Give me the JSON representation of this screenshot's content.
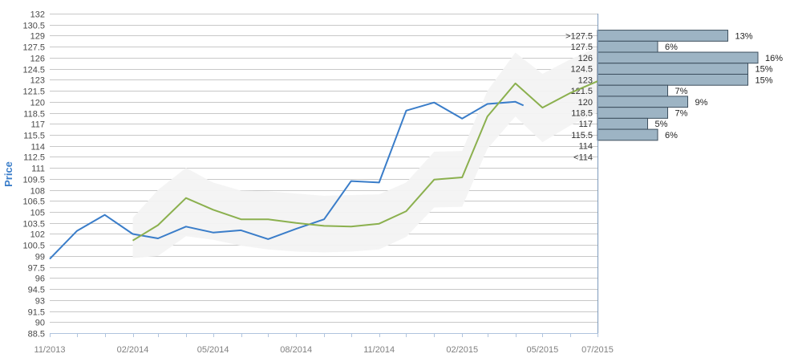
{
  "chart_data": {
    "type": "line",
    "title": "",
    "xlabel": "",
    "ylabel": "Price",
    "ylim": [
      88.5,
      132
    ],
    "y_ticks": [
      88.5,
      90,
      91.5,
      93,
      94.5,
      96,
      97.5,
      99,
      100.5,
      102,
      103.5,
      105,
      106.5,
      108,
      109.5,
      111,
      112.5,
      114,
      115.5,
      117,
      118.5,
      120,
      121.5,
      123,
      124.5,
      126,
      127.5,
      129,
      130.5,
      132
    ],
    "y_tick_labels": [
      "88.5",
      "90",
      "91.5",
      "93",
      "94.5",
      "96",
      "97.5",
      "99",
      "100.5",
      "102",
      "103.5",
      "105",
      "106.5",
      "108",
      "109.5",
      "111",
      "112.5",
      "114",
      "115.5",
      "117",
      "118.5",
      "120",
      "121.5",
      "123",
      "124.5",
      "126",
      "127.5",
      "129",
      "130.5",
      "132"
    ],
    "x_range": [
      "2013-11-01",
      "2015-07-01"
    ],
    "x_ticks": [
      {
        "date": "2013-11-01",
        "label": "11/2013"
      },
      {
        "date": "2014-02-01",
        "label": "02/2014"
      },
      {
        "date": "2014-05-01",
        "label": "05/2014"
      },
      {
        "date": "2014-08-01",
        "label": "08/2014"
      },
      {
        "date": "2014-11-01",
        "label": "11/2014"
      },
      {
        "date": "2015-02-01",
        "label": "02/2015"
      },
      {
        "date": "2015-05-01",
        "label": "05/2015"
      },
      {
        "date": "2015-07-01",
        "label": "07/2015"
      }
    ],
    "grid": true,
    "series": [
      {
        "color": "#3a7dc9",
        "points": [
          {
            "x": "2013-11-01",
            "y": 98.6
          },
          {
            "x": "2013-12-01",
            "y": 102.4
          },
          {
            "x": "2014-01-01",
            "y": 104.6
          },
          {
            "x": "2014-02-01",
            "y": 102.0
          },
          {
            "x": "2014-03-01",
            "y": 101.4
          },
          {
            "x": "2014-04-01",
            "y": 103.0
          },
          {
            "x": "2014-05-01",
            "y": 102.2
          },
          {
            "x": "2014-06-01",
            "y": 102.5
          },
          {
            "x": "2014-07-01",
            "y": 101.3
          },
          {
            "x": "2014-08-01",
            "y": 102.7
          },
          {
            "x": "2014-09-01",
            "y": 104.0
          },
          {
            "x": "2014-10-01",
            "y": 109.2
          },
          {
            "x": "2014-11-01",
            "y": 109.0
          },
          {
            "x": "2014-12-01",
            "y": 118.8
          },
          {
            "x": "2015-01-01",
            "y": 119.9
          },
          {
            "x": "2015-02-01",
            "y": 117.7
          },
          {
            "x": "2015-03-01",
            "y": 119.7
          },
          {
            "x": "2015-04-01",
            "y": 120.0
          },
          {
            "x": "2015-04-10",
            "y": 119.5
          }
        ]
      },
      {
        "color": "#8bb04e",
        "points": [
          {
            "x": "2014-02-01",
            "y": 101.1
          },
          {
            "x": "2014-03-01",
            "y": 103.2
          },
          {
            "x": "2014-04-01",
            "y": 106.9
          },
          {
            "x": "2014-05-01",
            "y": 105.3
          },
          {
            "x": "2014-06-01",
            "y": 104.0
          },
          {
            "x": "2014-07-01",
            "y": 104.0
          },
          {
            "x": "2014-08-01",
            "y": 103.5
          },
          {
            "x": "2014-09-01",
            "y": 103.1
          },
          {
            "x": "2014-10-01",
            "y": 103.0
          },
          {
            "x": "2014-11-01",
            "y": 103.4
          },
          {
            "x": "2014-12-01",
            "y": 105.1
          },
          {
            "x": "2015-01-01",
            "y": 109.4
          },
          {
            "x": "2015-02-01",
            "y": 109.7
          },
          {
            "x": "2015-03-01",
            "y": 118.0
          },
          {
            "x": "2015-04-01",
            "y": 122.5
          },
          {
            "x": "2015-05-01",
            "y": 119.2
          },
          {
            "x": "2015-06-01",
            "y": 121.2
          },
          {
            "x": "2015-07-01",
            "y": 122.8
          }
        ]
      }
    ],
    "band": {
      "color": "#f3f3f3",
      "points": [
        {
          "x": "2014-02-01",
          "low": 98.7,
          "high": 104.2
        },
        {
          "x": "2014-03-01",
          "low": 99.0,
          "high": 108.0
        },
        {
          "x": "2014-04-01",
          "low": 101.7,
          "high": 111.0
        },
        {
          "x": "2014-05-01",
          "low": 101.2,
          "high": 109.0
        },
        {
          "x": "2014-06-01",
          "low": 100.4,
          "high": 107.9
        },
        {
          "x": "2014-07-01",
          "low": 99.9,
          "high": 107.8
        },
        {
          "x": "2014-08-01",
          "low": 99.6,
          "high": 107.5
        },
        {
          "x": "2014-09-01",
          "low": 99.5,
          "high": 107.2
        },
        {
          "x": "2014-10-01",
          "low": 99.6,
          "high": 107.3
        },
        {
          "x": "2014-11-01",
          "low": 99.9,
          "high": 107.4
        },
        {
          "x": "2014-12-01",
          "low": 101.6,
          "high": 109.0
        },
        {
          "x": "2015-01-01",
          "low": 105.6,
          "high": 113.2
        },
        {
          "x": "2015-02-01",
          "low": 105.7,
          "high": 113.3
        },
        {
          "x": "2015-03-01",
          "low": 113.6,
          "high": 121.5
        },
        {
          "x": "2015-04-01",
          "low": 118.0,
          "high": 126.7
        },
        {
          "x": "2015-05-01",
          "low": 114.5,
          "high": 123.8
        },
        {
          "x": "2015-06-01",
          "low": 116.8,
          "high": 125.8
        },
        {
          "x": "2015-07-01",
          "low": 118.5,
          "high": 127.4
        }
      ]
    },
    "histogram": {
      "bar_color": "#9db4c4",
      "bins": [
        {
          "label": ">127.5",
          "y": 129,
          "value": 13,
          "pct_label": "13%"
        },
        {
          "label": "127.5",
          "y": 127.5,
          "value": 6,
          "pct_label": "6%"
        },
        {
          "label": "126",
          "y": 126,
          "value": 16,
          "pct_label": "16%"
        },
        {
          "label": "124.5",
          "y": 124.5,
          "value": 15,
          "pct_label": "15%"
        },
        {
          "label": "123",
          "y": 123,
          "value": 15,
          "pct_label": "15%"
        },
        {
          "label": "121.5",
          "y": 121.5,
          "value": 7,
          "pct_label": "7%"
        },
        {
          "label": "120",
          "y": 120,
          "value": 9,
          "pct_label": "9%"
        },
        {
          "label": "118.5",
          "y": 118.5,
          "value": 7,
          "pct_label": "7%"
        },
        {
          "label": "117",
          "y": 117,
          "value": 5,
          "pct_label": "5%"
        },
        {
          "label": "115.5",
          "y": 115.5,
          "value": 6,
          "pct_label": "6%"
        },
        {
          "label": "114",
          "y": 114,
          "value": null,
          "pct_label": ""
        },
        {
          "label": "<114",
          "y": 112.5,
          "value": null,
          "pct_label": ""
        }
      ]
    }
  }
}
